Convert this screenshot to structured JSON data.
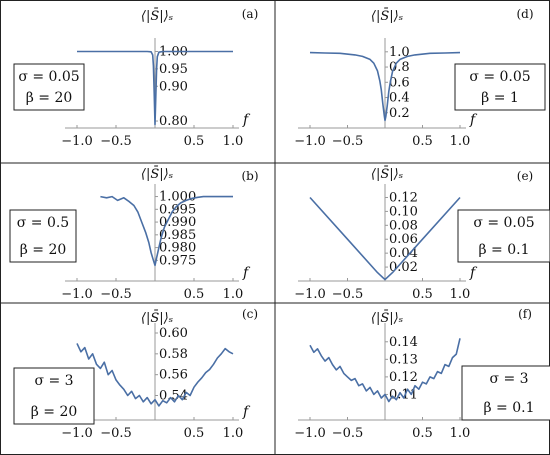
{
  "chart_data": [
    {
      "id": "(a)",
      "type": "line",
      "ylabel": "⟨|S̄|⟩ₛ",
      "xlabel": "f",
      "xlim": [
        -1.0,
        1.0
      ],
      "ylim": [
        0.78,
        1.01
      ],
      "xticks": [
        "-1.0",
        "-0.5",
        "0.5",
        "1.0"
      ],
      "yticks": [
        "0.80",
        "0.90",
        "0.95",
        "1.00"
      ],
      "params": {
        "sigma": "σ = 0.05",
        "beta": "β = 20"
      },
      "color": "#4a6fa5",
      "x": [
        -1.0,
        -0.5,
        -0.1,
        -0.05,
        -0.03,
        -0.02,
        -0.01,
        0.0,
        0.01,
        0.02,
        0.03,
        0.05,
        0.1,
        0.5,
        1.0
      ],
      "y": [
        1.0,
        1.0,
        1.0,
        0.999,
        0.99,
        0.96,
        0.88,
        0.79,
        0.87,
        0.95,
        0.985,
        0.998,
        1.0,
        1.0,
        1.0
      ]
    },
    {
      "id": "(d)",
      "type": "line",
      "ylabel": "⟨|S̄|⟩ₛ",
      "xlabel": "f",
      "xlim": [
        -1.0,
        1.0
      ],
      "ylim": [
        0.0,
        1.05
      ],
      "xticks": [
        "-1.0",
        "-0.5",
        "0.5",
        "1.0"
      ],
      "yticks": [
        "0.2",
        "0.4",
        "0.6",
        "0.8",
        "1.0"
      ],
      "params": {
        "sigma": "σ = 0.05",
        "beta": "β = 1"
      },
      "color": "#4a6fa5",
      "x": [
        -1.0,
        -0.8,
        -0.6,
        -0.4,
        -0.3,
        -0.2,
        -0.15,
        -0.1,
        -0.07,
        -0.05,
        -0.03,
        -0.01,
        0.0,
        0.01,
        0.03,
        0.05,
        0.07,
        0.1,
        0.15,
        0.2,
        0.3,
        0.4,
        0.6,
        0.8,
        1.0
      ],
      "y": [
        0.99,
        0.985,
        0.98,
        0.96,
        0.94,
        0.9,
        0.85,
        0.75,
        0.62,
        0.5,
        0.32,
        0.16,
        0.1,
        0.15,
        0.3,
        0.48,
        0.6,
        0.74,
        0.85,
        0.9,
        0.94,
        0.96,
        0.98,
        0.985,
        0.99
      ]
    },
    {
      "id": "(b)",
      "type": "line",
      "ylabel": "⟨|S̄|⟩ₛ",
      "xlabel": "f",
      "xlim": [
        -1.0,
        1.0
      ],
      "ylim": [
        0.972,
        1.001
      ],
      "xticks": [
        "-1.0",
        "-0.5",
        "0.5",
        "1.0"
      ],
      "yticks": [
        "0.975",
        "0.980",
        "0.985",
        "0.990",
        "0.995",
        "1.000"
      ],
      "params": {
        "sigma": "σ = 0.5",
        "beta": "β = 20"
      },
      "color": "#4a6fa5",
      "x": [
        -0.7,
        -0.62,
        -0.55,
        -0.48,
        -0.4,
        -0.33,
        -0.27,
        -0.22,
        -0.17,
        -0.12,
        -0.08,
        -0.05,
        -0.02,
        0.0,
        0.02,
        0.05,
        0.08,
        0.12,
        0.17,
        0.22,
        0.27,
        0.33,
        0.4,
        0.48,
        0.55,
        0.62,
        0.7,
        0.8,
        0.9,
        1.0
      ],
      "y": [
        1.0,
        0.9995,
        1.0,
        0.9985,
        0.9995,
        0.998,
        0.9965,
        0.994,
        0.99,
        0.986,
        0.982,
        0.978,
        0.975,
        0.973,
        0.976,
        0.98,
        0.984,
        0.988,
        0.991,
        0.994,
        0.996,
        0.9975,
        0.9985,
        0.9993,
        0.9997,
        1.0,
        1.0,
        1.0,
        1.0,
        1.0
      ]
    },
    {
      "id": "(e)",
      "type": "line",
      "ylabel": "⟨|S̄|⟩ₛ",
      "xlabel": "f",
      "xlim": [
        -1.0,
        1.0
      ],
      "ylim": [
        0.0,
        0.125
      ],
      "xticks": [
        "-1.0",
        "-0.5",
        "0.5",
        "1.0"
      ],
      "yticks": [
        "0.02",
        "0.04",
        "0.06",
        "0.08",
        "0.10",
        "0.12"
      ],
      "params": {
        "sigma": "σ = 0.05",
        "beta": "β = 0.1"
      },
      "color": "#4a6fa5",
      "x": [
        -1.0,
        -0.5,
        -0.1,
        0.0,
        0.1,
        0.5,
        1.0
      ],
      "y": [
        0.12,
        0.06,
        0.012,
        0.002,
        0.012,
        0.06,
        0.12
      ]
    },
    {
      "id": "(c)",
      "type": "line",
      "ylabel": "⟨|S̄|⟩ₛ",
      "xlabel": "f",
      "xlim": [
        -1.0,
        1.0
      ],
      "ylim": [
        0.528,
        0.6
      ],
      "xticks": [
        "-1.0",
        "-0.5",
        "0.5",
        "1.0"
      ],
      "yticks": [
        "0.54",
        "0.56",
        "0.58",
        "0.60"
      ],
      "params": {
        "sigma": "σ = 3",
        "beta": "β = 20"
      },
      "color": "#4a6fa5",
      "x": [
        -1.0,
        -0.95,
        -0.9,
        -0.85,
        -0.8,
        -0.75,
        -0.7,
        -0.65,
        -0.6,
        -0.55,
        -0.5,
        -0.45,
        -0.4,
        -0.35,
        -0.3,
        -0.25,
        -0.2,
        -0.15,
        -0.1,
        -0.05,
        0.0,
        0.05,
        0.1,
        0.15,
        0.2,
        0.25,
        0.3,
        0.35,
        0.4,
        0.45,
        0.5,
        0.55,
        0.6,
        0.65,
        0.7,
        0.75,
        0.8,
        0.85,
        0.9,
        0.95,
        1.0
      ],
      "y": [
        0.59,
        0.582,
        0.586,
        0.575,
        0.58,
        0.57,
        0.566,
        0.572,
        0.56,
        0.564,
        0.555,
        0.55,
        0.546,
        0.54,
        0.544,
        0.537,
        0.54,
        0.534,
        0.538,
        0.532,
        0.536,
        0.53,
        0.535,
        0.533,
        0.538,
        0.534,
        0.54,
        0.536,
        0.543,
        0.54,
        0.548,
        0.553,
        0.557,
        0.562,
        0.565,
        0.57,
        0.576,
        0.58,
        0.585,
        0.582,
        0.58
      ]
    },
    {
      "id": "(f)",
      "type": "line",
      "ylabel": "⟨|S̄|⟩ₛ",
      "xlabel": "f",
      "xlim": [
        -1.0,
        1.0
      ],
      "ylim": [
        0.1,
        0.145
      ],
      "xticks": [
        "-1.0",
        "-0.5",
        "0.5",
        "1.0"
      ],
      "yticks": [
        "0.11",
        "0.12",
        "0.13",
        "0.14"
      ],
      "params": {
        "sigma": "σ = 3",
        "beta": "β = 0.1"
      },
      "color": "#4a6fa5",
      "x": [
        -1.0,
        -0.95,
        -0.9,
        -0.85,
        -0.8,
        -0.75,
        -0.7,
        -0.65,
        -0.6,
        -0.55,
        -0.5,
        -0.45,
        -0.4,
        -0.35,
        -0.3,
        -0.25,
        -0.2,
        -0.15,
        -0.1,
        -0.05,
        0.0,
        0.05,
        0.1,
        0.15,
        0.2,
        0.25,
        0.3,
        0.35,
        0.4,
        0.45,
        0.5,
        0.55,
        0.6,
        0.65,
        0.7,
        0.75,
        0.8,
        0.85,
        0.9,
        0.95,
        1.0
      ],
      "y": [
        0.138,
        0.134,
        0.136,
        0.132,
        0.129,
        0.131,
        0.127,
        0.124,
        0.126,
        0.122,
        0.12,
        0.118,
        0.119,
        0.115,
        0.116,
        0.112,
        0.114,
        0.11,
        0.112,
        0.108,
        0.11,
        0.106,
        0.109,
        0.107,
        0.111,
        0.108,
        0.113,
        0.11,
        0.115,
        0.113,
        0.117,
        0.116,
        0.12,
        0.119,
        0.123,
        0.122,
        0.127,
        0.126,
        0.131,
        0.133,
        0.142
      ]
    }
  ]
}
